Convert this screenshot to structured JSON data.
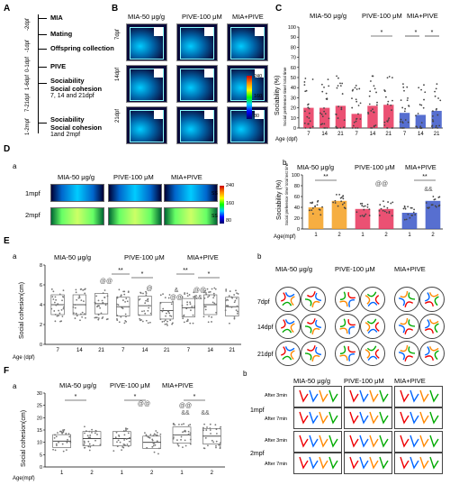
{
  "panels": {
    "A": "A",
    "B": "B",
    "C": "C",
    "D": "D",
    "E": "E",
    "F": "F",
    "Da": "a",
    "Db": "b",
    "Ea": "a",
    "Eb": "b",
    "Fa": "a",
    "Fb": "b"
  },
  "timeline": {
    "axis_labels": [
      "-2dpf",
      "-1dpf",
      "0-1dpf",
      "1-6dpf",
      "7-21dpf",
      "1-2mpf"
    ],
    "events": [
      "MIA",
      "Mating",
      "Offspring collection",
      "PIVE",
      "Sociability",
      "Social cohesion",
      "7, 14 and 21dpf",
      "Sociability",
      "Social cohesion",
      "1and 2mpf"
    ]
  },
  "groups": [
    "MIA-50 μg/g",
    "PIVE-100 μM",
    "MIA+PIVE"
  ],
  "b_rows": [
    "7dpf",
    "14dpf",
    "21dpf"
  ],
  "colorbar": [
    "240",
    "160",
    "80"
  ],
  "d_rows": [
    "1mpf",
    "2mpf"
  ],
  "d_colorbar": [
    "240",
    "160",
    "80"
  ],
  "d_marks": [
    "SS",
    "SS"
  ],
  "e_rows": [
    "7dpf",
    "14dpf",
    "21dpf"
  ],
  "f_rows": [
    "1mpf",
    "2mpf"
  ],
  "after": [
    "After 3min",
    "After 7min"
  ],
  "chart_data": [
    {
      "id": "C",
      "type": "bar",
      "ylabel": "Sociability (%)",
      "ylabel2": "Social preference time/ total time",
      "xlabel": "Age (dpf)",
      "ylim": [
        0,
        100
      ],
      "yticks": [
        "0",
        "10",
        "20",
        "30",
        "40",
        "50",
        "60",
        "70",
        "80",
        "90",
        "100"
      ],
      "categories": [
        "7",
        "14",
        "21",
        "7",
        "14",
        "21",
        "7",
        "14",
        "21"
      ],
      "series": [
        {
          "values": [
            20,
            20,
            22,
            14,
            22,
            23,
            15,
            13,
            17
          ]
        }
      ],
      "annotations": [
        "*",
        "*",
        "*"
      ]
    },
    {
      "id": "Db",
      "type": "bar",
      "ylabel": "Sociability (%)",
      "ylabel2": "Social preference time/ total test time",
      "xlabel": "Age(mpf)",
      "ylim": [
        0,
        100
      ],
      "yticks": [
        "0",
        "20",
        "40",
        "60",
        "80",
        "100"
      ],
      "categories": [
        "1",
        "2",
        "1",
        "2",
        "1",
        "2"
      ],
      "series": [
        {
          "values": [
            40,
            52,
            37,
            37,
            30,
            52
          ]
        }
      ],
      "annotations": [
        "**",
        "@@",
        "**",
        "&&"
      ]
    },
    {
      "id": "Ea",
      "type": "scatter",
      "ylabel": "Social cohesion(cm)",
      "xlabel": "Age (dpf)",
      "ylim": [
        0,
        8
      ],
      "yticks": [
        "0",
        "2",
        "4",
        "6",
        "8"
      ],
      "categories": [
        "7",
        "14",
        "21",
        "7",
        "14",
        "21",
        "7",
        "14",
        "21"
      ],
      "series": [
        {
          "values": [
            4.0,
            4.0,
            4.1,
            3.8,
            3.9,
            3.4,
            3.7,
            4.0,
            3.8
          ]
        }
      ],
      "annotations": [
        "**",
        "*",
        "@@",
        "@",
        "**",
        "*",
        "&",
        "@@",
        "&&",
        "@@"
      ]
    },
    {
      "id": "Fa",
      "type": "scatter",
      "ylabel": "Social cohesion(cm)",
      "xlabel": "Age(mpf)",
      "ylim": [
        0,
        30
      ],
      "yticks": [
        "0",
        "5",
        "10",
        "15",
        "20",
        "25",
        "30"
      ],
      "categories": [
        "1",
        "2",
        "1",
        "2",
        "1",
        "2"
      ],
      "series": [
        {
          "values": [
            10.5,
            11.5,
            11.5,
            10.0,
            13.0,
            12.5
          ]
        }
      ],
      "annotations": [
        "*",
        "*",
        "*",
        "@@",
        "@@",
        "&&",
        "&&"
      ]
    }
  ]
}
